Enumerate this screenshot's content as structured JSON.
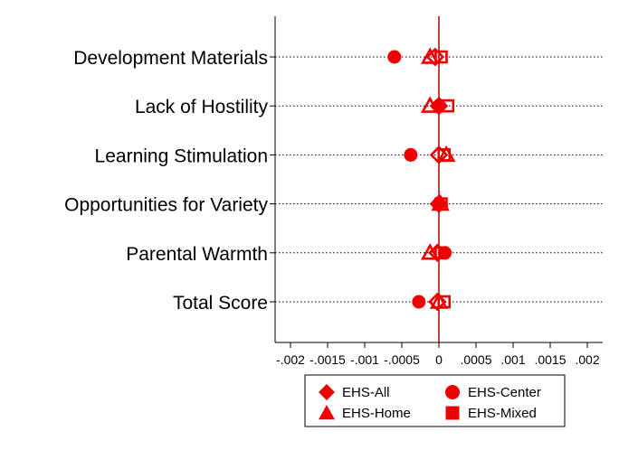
{
  "chart_data": {
    "type": "scatter",
    "orientation": "horizontal",
    "categories": [
      "Development Materials",
      "Lack of Hostility",
      "Learning Stimulation",
      "Opportunities for Variety",
      "Parental Warmth",
      "Total Score"
    ],
    "x_ticks": [
      "-.002",
      "-.0015",
      "-.001",
      "-.0005",
      "0",
      ".0005",
      ".001",
      ".0015",
      ".002"
    ],
    "xlim": [
      -0.002,
      0.002
    ],
    "reference_line_x": 0,
    "grid": "dotted horizontal",
    "legend_position": "bottom",
    "series": [
      {
        "name": "EHS-All",
        "marker": "diamond-hollow",
        "values": [
          -5e-05,
          0.0,
          0.0,
          0.0,
          -2e-05,
          -2e-05
        ]
      },
      {
        "name": "EHS-Center",
        "marker": "circle",
        "values": [
          -0.0006,
          0.0,
          -0.00038,
          0.0,
          8e-05,
          -0.00027
        ]
      },
      {
        "name": "EHS-Home",
        "marker": "triangle-hollow",
        "values": [
          -0.00012,
          -0.00012,
          0.0001,
          2e-05,
          -0.00012,
          0.0
        ]
      },
      {
        "name": "EHS-Mixed",
        "marker": "square-hollow",
        "values": [
          3e-05,
          0.00012,
          7e-05,
          3e-05,
          3e-05,
          7e-05
        ]
      }
    ],
    "colors": {
      "marker": "#ee0000",
      "axis": "#000000",
      "zero_line": "#b00000"
    }
  }
}
